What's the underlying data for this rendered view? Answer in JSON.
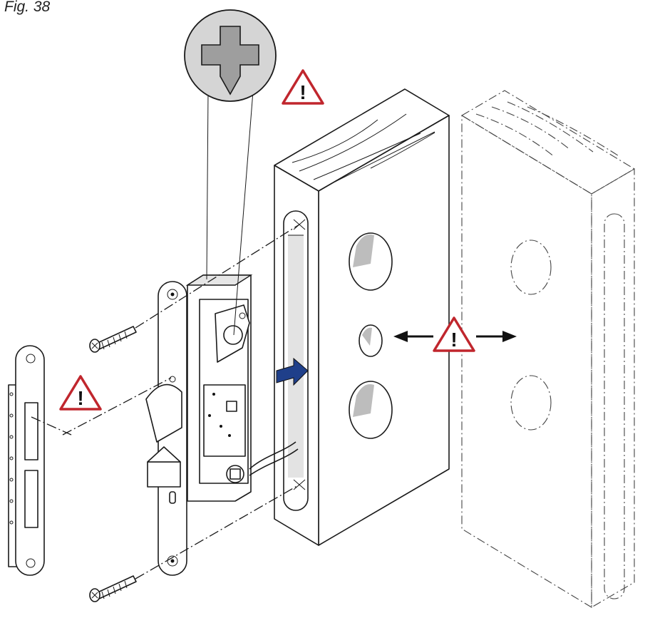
{
  "figure": {
    "caption": "Fig. 38"
  },
  "warning_symbol": {
    "glyph": "!",
    "color": "#c0262d",
    "count": 3
  },
  "icons": {
    "screwdriver_bit": "phillips-cross-icon",
    "warning": "warning-triangle-icon",
    "insert_direction": "blue-arrow-icon",
    "adjust_direction": "double-arrow-icon"
  },
  "colors": {
    "arrow_fill": "#1f3f8a",
    "warning_stroke": "#c0262d",
    "lock_body": "#e6e6e6"
  }
}
